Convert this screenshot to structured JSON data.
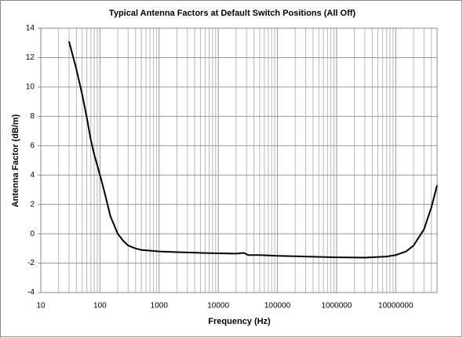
{
  "chart_data": {
    "type": "line",
    "title": "Typical Antenna Factors at Default Switch Positions (All Off)",
    "x_label": "Frequency (Hz)",
    "y_label": "Antenna Factor (dB/m)",
    "log_x": true,
    "grid": true,
    "xlim": [
      10,
      50000000
    ],
    "xticks": [
      10,
      100,
      1000,
      10000,
      100000,
      1000000,
      10000000
    ],
    "xminorticks": [
      20,
      30,
      40,
      50,
      60,
      70,
      80,
      90,
      200,
      300,
      400,
      500,
      600,
      700,
      800,
      900,
      2000,
      3000,
      4000,
      5000,
      6000,
      7000,
      8000,
      9000,
      20000,
      30000,
      40000,
      50000,
      60000,
      70000,
      80000,
      90000,
      200000,
      300000,
      400000,
      500000,
      600000,
      700000,
      800000,
      900000,
      2000000,
      3000000,
      4000000,
      5000000,
      6000000,
      7000000,
      8000000,
      9000000,
      20000000,
      30000000,
      40000000
    ],
    "ylim": [
      -4,
      14
    ],
    "yticks": [
      -4,
      -2,
      0,
      2,
      4,
      6,
      8,
      10,
      12,
      14
    ],
    "series": [
      {
        "name": "Antenna Factor",
        "color": "#000000",
        "x": [
          30,
          40,
          50,
          60,
          70,
          80,
          100,
          120,
          150,
          200,
          250,
          300,
          400,
          500,
          700,
          1000,
          2000,
          5000,
          10000,
          20000,
          27000,
          32000,
          50000,
          100000,
          300000,
          1000000,
          3000000,
          7000000,
          10000000,
          15000000,
          20000000,
          30000000,
          40000000,
          50000000
        ],
        "values": [
          13.1,
          11.2,
          9.5,
          7.9,
          6.4,
          5.4,
          4.0,
          2.8,
          1.2,
          0.0,
          -0.5,
          -0.8,
          -1.0,
          -1.1,
          -1.15,
          -1.2,
          -1.25,
          -1.3,
          -1.33,
          -1.35,
          -1.3,
          -1.45,
          -1.45,
          -1.5,
          -1.55,
          -1.6,
          -1.62,
          -1.55,
          -1.45,
          -1.2,
          -0.8,
          0.3,
          1.8,
          3.3
        ]
      }
    ]
  }
}
